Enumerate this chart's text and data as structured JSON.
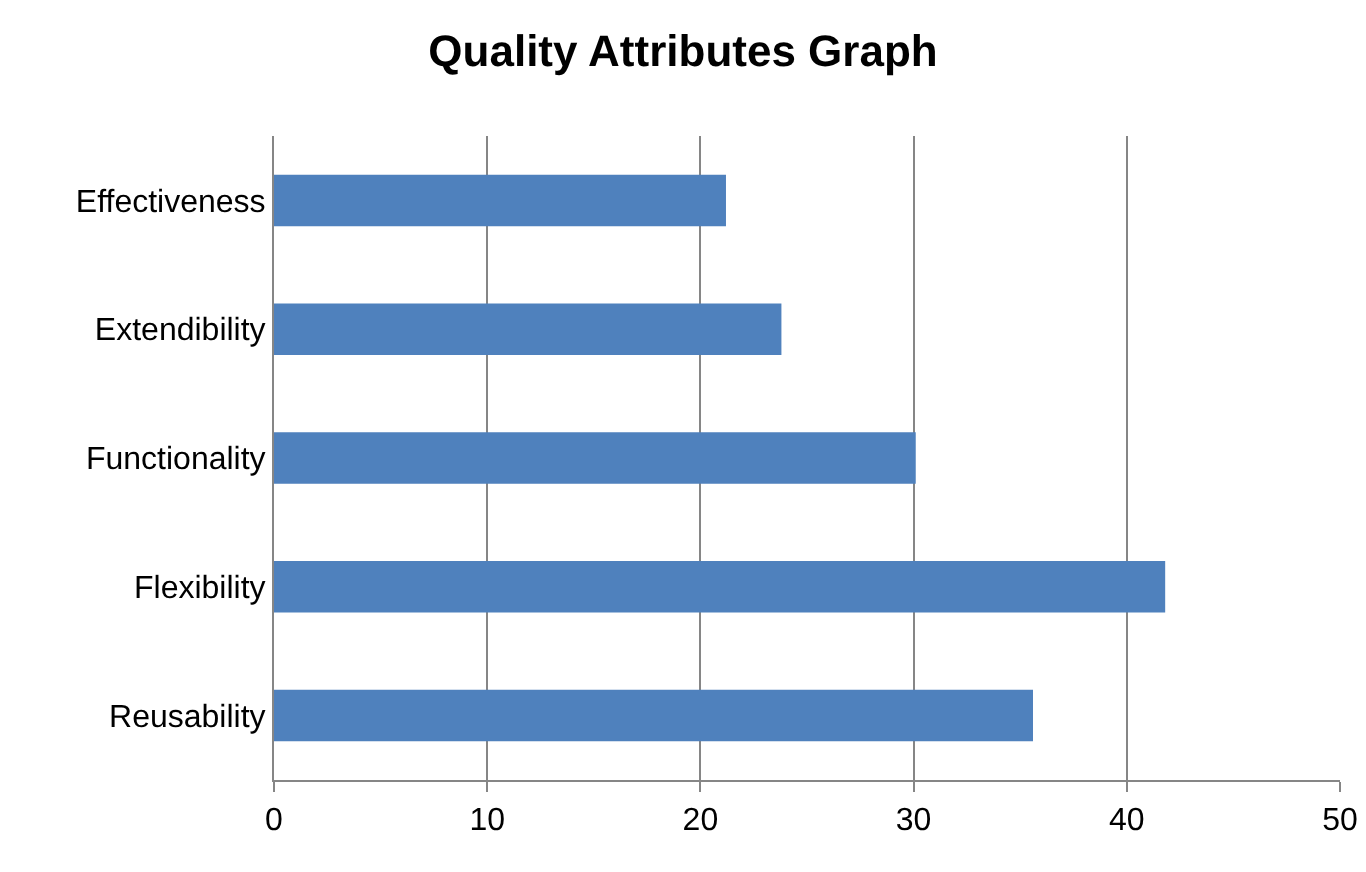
{
  "chart_data": {
    "type": "bar",
    "orientation": "horizontal",
    "title": "Quality Attributes Graph",
    "categories": [
      "Effectiveness",
      "Extendibility",
      "Functionality",
      "Flexibility",
      "Reusability"
    ],
    "values": [
      21.2,
      23.8,
      30.1,
      41.8,
      35.6
    ],
    "color": "#4f81bd",
    "xlim": [
      0,
      50
    ],
    "xticks": [
      0,
      10,
      20,
      30,
      40,
      50
    ],
    "grid": "x",
    "legend": false
  }
}
